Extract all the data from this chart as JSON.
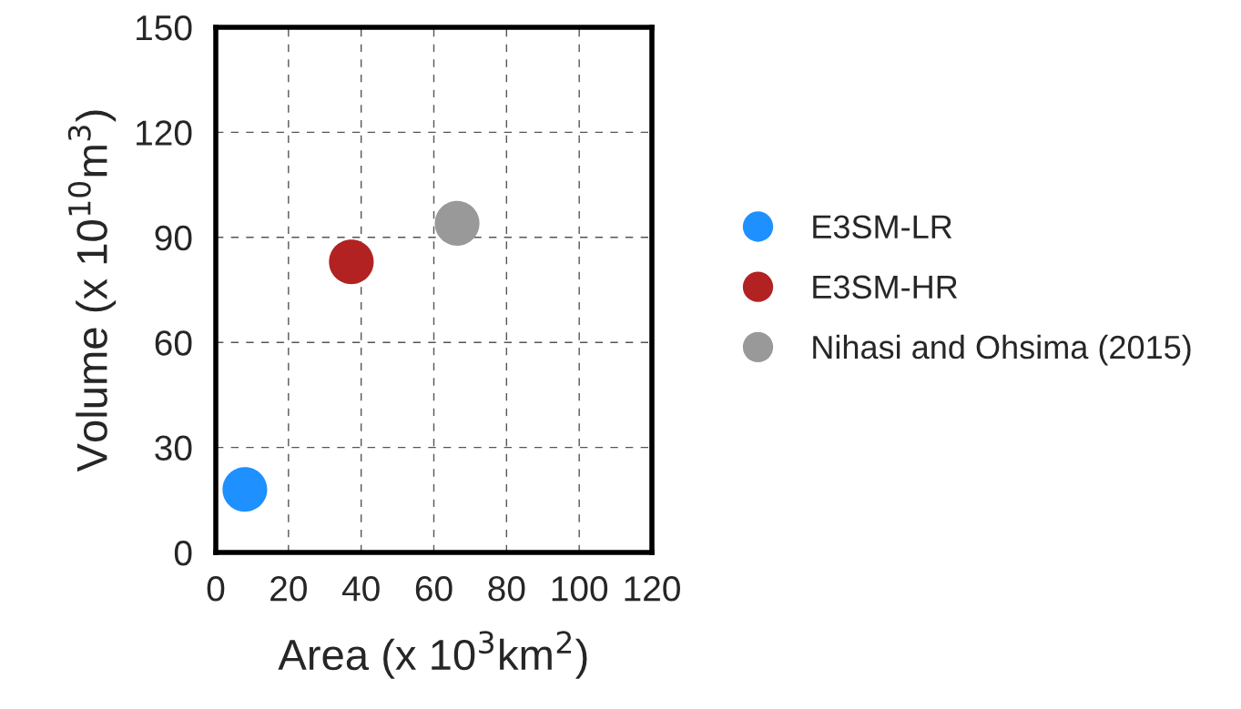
{
  "chart_data": {
    "type": "scatter",
    "xlabel": "Area (x 10$^{3}$km$^{2}$)",
    "ylabel": "Volume (x 10$^{10}$m$^{3}$)",
    "series": [
      {
        "name": "E3SM-LR",
        "color": "#1e90ff",
        "x": [
          8
        ],
        "values": [
          18
        ]
      },
      {
        "name": "E3SM-HR",
        "color": "#b22222",
        "x": [
          37.3
        ],
        "values": [
          83
        ]
      },
      {
        "name": "Nihasi and Ohsima (2015)",
        "color": "#999999",
        "x": [
          66.4
        ],
        "values": [
          94
        ]
      }
    ],
    "xlim": [
      0,
      120
    ],
    "xticks": [
      0,
      20,
      40,
      60,
      80,
      100,
      120
    ],
    "ylim": [
      0,
      150
    ],
    "yticks": [
      0,
      30,
      60,
      90,
      120,
      150
    ],
    "grid": true,
    "legend": "right",
    "marker": "circle"
  }
}
